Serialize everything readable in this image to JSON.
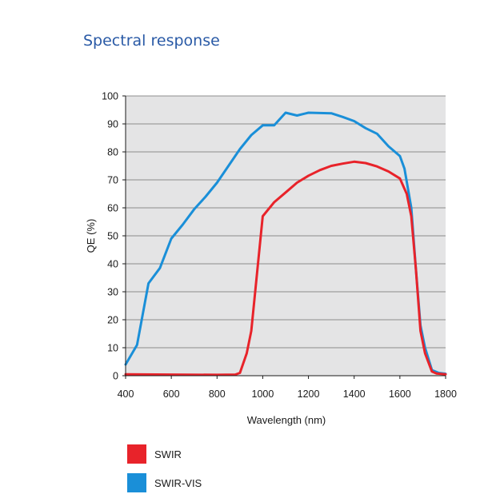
{
  "page": {
    "title": "Spectral response"
  },
  "chart_data": {
    "type": "line",
    "title": "",
    "xlabel": "Wavelength (nm)",
    "ylabel": "QE (%)",
    "xlim": [
      400,
      1800
    ],
    "ylim": [
      0,
      100
    ],
    "xticks": [
      400,
      600,
      800,
      1000,
      1200,
      1400,
      1600,
      1800
    ],
    "yticks": [
      0,
      10,
      20,
      30,
      40,
      50,
      60,
      70,
      80,
      90,
      100
    ],
    "grid": "horizontal",
    "legend_position": "bottom-left",
    "series": [
      {
        "name": "SWIR",
        "color": "#e8232a",
        "points": [
          [
            400,
            0.5
          ],
          [
            600,
            0.4
          ],
          [
            800,
            0.3
          ],
          [
            880,
            0.4
          ],
          [
            900,
            1
          ],
          [
            930,
            8
          ],
          [
            950,
            16
          ],
          [
            1000,
            57
          ],
          [
            1050,
            62
          ],
          [
            1100,
            65.5
          ],
          [
            1150,
            69
          ],
          [
            1200,
            71.5
          ],
          [
            1250,
            73.5
          ],
          [
            1300,
            75
          ],
          [
            1350,
            75.8
          ],
          [
            1400,
            76.5
          ],
          [
            1450,
            76
          ],
          [
            1500,
            74.8
          ],
          [
            1550,
            73
          ],
          [
            1600,
            70.5
          ],
          [
            1630,
            65
          ],
          [
            1650,
            57
          ],
          [
            1670,
            38
          ],
          [
            1690,
            16
          ],
          [
            1710,
            8
          ],
          [
            1740,
            1.5
          ],
          [
            1760,
            0.8
          ],
          [
            1800,
            0.5
          ]
        ]
      },
      {
        "name": "SWIR-VIS",
        "color": "#1a8fd8",
        "points": [
          [
            400,
            4
          ],
          [
            450,
            11
          ],
          [
            500,
            33
          ],
          [
            550,
            38.5
          ],
          [
            600,
            49
          ],
          [
            650,
            54
          ],
          [
            700,
            59.5
          ],
          [
            750,
            64
          ],
          [
            800,
            69
          ],
          [
            850,
            75
          ],
          [
            900,
            81
          ],
          [
            950,
            86
          ],
          [
            1000,
            89.5
          ],
          [
            1050,
            89.5
          ],
          [
            1100,
            94
          ],
          [
            1150,
            93
          ],
          [
            1200,
            94
          ],
          [
            1300,
            93.8
          ],
          [
            1350,
            92.5
          ],
          [
            1400,
            91
          ],
          [
            1450,
            88.5
          ],
          [
            1500,
            86.5
          ],
          [
            1550,
            82
          ],
          [
            1600,
            78.5
          ],
          [
            1620,
            74
          ],
          [
            1650,
            60
          ],
          [
            1670,
            38
          ],
          [
            1690,
            18
          ],
          [
            1710,
            10
          ],
          [
            1740,
            2
          ],
          [
            1770,
            1
          ],
          [
            1800,
            0.7
          ]
        ]
      }
    ]
  }
}
